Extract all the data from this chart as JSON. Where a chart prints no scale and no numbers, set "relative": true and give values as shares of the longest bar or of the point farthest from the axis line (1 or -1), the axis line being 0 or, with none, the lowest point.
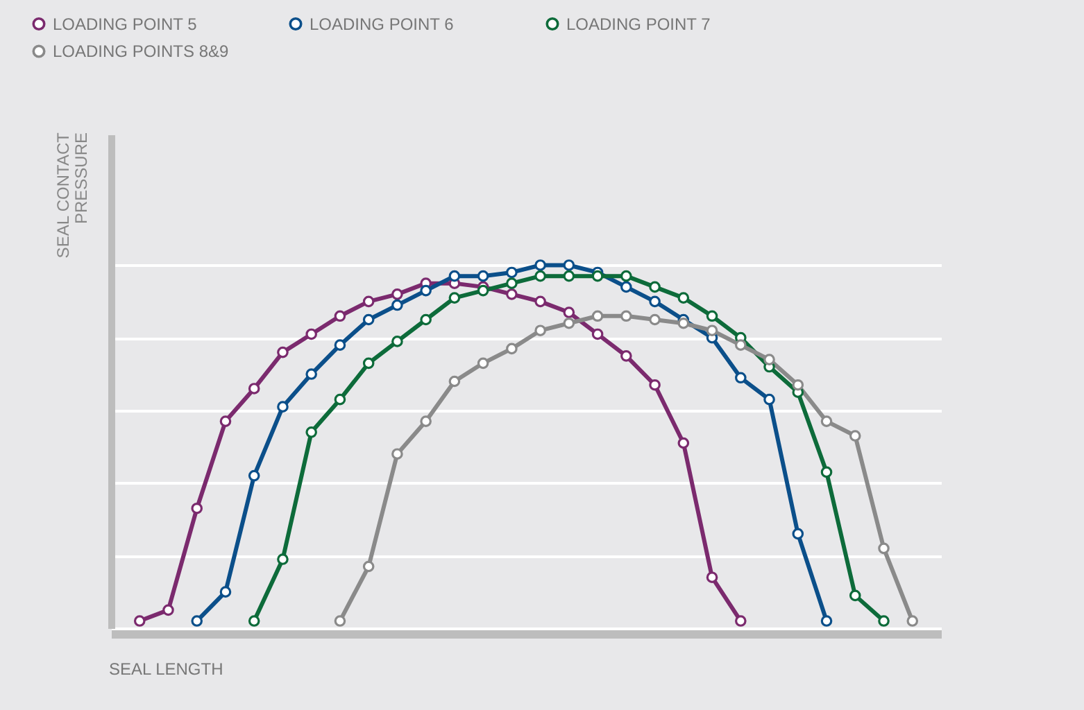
{
  "chart_data": {
    "type": "line",
    "xlabel": "SEAL LENGTH",
    "ylabel": "SEAL CONTACT PRESSURE",
    "relative": true,
    "grid": "y",
    "legend": "top left",
    "marker": "circle",
    "line_style": "solid",
    "categories": [
      null,
      null,
      null,
      null,
      null,
      null,
      null,
      null,
      null,
      null,
      null,
      null,
      null,
      null,
      null,
      null,
      null,
      null,
      null,
      null,
      null,
      null,
      null,
      null,
      null,
      null,
      null,
      null
    ],
    "series": [
      {
        "name": "LOADING POINT 5",
        "color": "#7b2a6e",
        "values": [
          0.02,
          0.05,
          0.33,
          0.57,
          0.66,
          0.76,
          0.81,
          0.86,
          0.9,
          0.92,
          0.95,
          0.95,
          0.94,
          0.92,
          0.9,
          0.87,
          0.81,
          0.75,
          0.67,
          0.51,
          0.14,
          0.02,
          null,
          null,
          null,
          null,
          null,
          null
        ]
      },
      {
        "name": "LOADING POINT 6",
        "color": "#0b4f8a",
        "values": [
          null,
          null,
          0.02,
          0.1,
          0.42,
          0.61,
          0.7,
          0.78,
          0.85,
          0.89,
          0.93,
          0.97,
          0.97,
          0.98,
          1,
          1,
          0.98,
          0.94,
          0.9,
          0.85,
          0.8,
          0.69,
          0.63,
          0.26,
          0.02,
          null,
          null,
          null
        ]
      },
      {
        "name": "LOADING POINT 7",
        "color": "#0d6b3a",
        "values": [
          null,
          null,
          null,
          null,
          0.02,
          0.19,
          0.54,
          0.63,
          0.73,
          0.79,
          0.85,
          0.91,
          0.93,
          0.95,
          0.97,
          0.97,
          0.97,
          0.97,
          0.94,
          0.91,
          0.86,
          0.8,
          0.72,
          0.65,
          0.43,
          0.09,
          0.02,
          null
        ]
      },
      {
        "name": "LOADING POINTS 8&9",
        "color": "#8a8a8a",
        "values": [
          null,
          null,
          null,
          null,
          null,
          null,
          null,
          0.02,
          0.17,
          0.48,
          0.57,
          0.68,
          0.73,
          0.77,
          0.82,
          0.84,
          0.86,
          0.86,
          0.85,
          0.84,
          0.82,
          0.78,
          0.74,
          0.67,
          0.57,
          0.53,
          0.22,
          0.02
        ]
      }
    ]
  }
}
